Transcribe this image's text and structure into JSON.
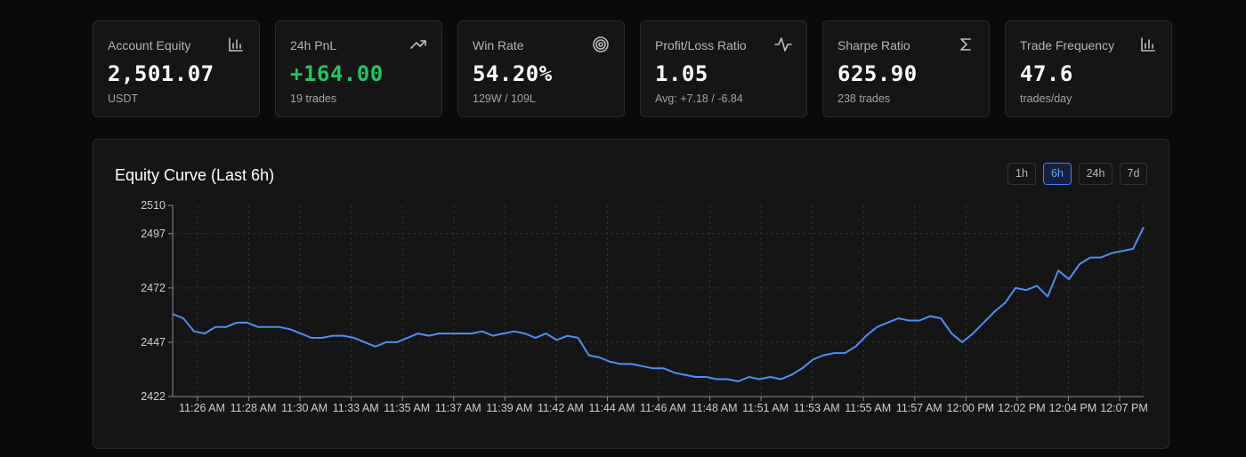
{
  "stats": [
    {
      "label": "Account Equity",
      "value": "2,501.07",
      "sub": "USDT",
      "icon": "bar-chart-icon",
      "positive": false
    },
    {
      "label": "24h PnL",
      "value": "+164.00",
      "sub": "19 trades",
      "icon": "trending-up-icon",
      "positive": true
    },
    {
      "label": "Win Rate",
      "value": "54.20%",
      "sub": "129W / 109L",
      "icon": "target-icon",
      "positive": false
    },
    {
      "label": "Profit/Loss Ratio",
      "value": "1.05",
      "sub": "Avg: +7.18 / -6.84",
      "icon": "activity-icon",
      "positive": false
    },
    {
      "label": "Sharpe Ratio",
      "value": "625.90",
      "sub": "238 trades",
      "icon": "sigma-icon",
      "positive": false
    },
    {
      "label": "Trade Frequency",
      "value": "47.6",
      "sub": "trades/day",
      "icon": "bar-chart-icon",
      "positive": false
    }
  ],
  "colors": {
    "accent": "#3b82f6",
    "positive": "#22c55e",
    "line": "#4f8ef7"
  },
  "chart": {
    "title": "Equity Curve (Last 6h)",
    "ranges": [
      "1h",
      "6h",
      "24h",
      "7d"
    ],
    "active_range": "6h"
  },
  "chart_data": {
    "type": "line",
    "title": "Equity Curve (Last 6h)",
    "xlabel": "",
    "ylabel": "",
    "ylim": [
      2422,
      2510
    ],
    "yticks": [
      2422,
      2447,
      2472,
      2497,
      2510
    ],
    "xtick_labels": [
      "11:26 AM",
      "11:28 AM",
      "11:30 AM",
      "11:33 AM",
      "11:35 AM",
      "11:37 AM",
      "11:39 AM",
      "11:42 AM",
      "11:44 AM",
      "11:46 AM",
      "11:48 AM",
      "11:51 AM",
      "11:53 AM",
      "11:55 AM",
      "11:57 AM",
      "12:00 PM",
      "12:02 PM",
      "12:04 PM",
      "12:07 PM"
    ],
    "grid": true,
    "series": [
      {
        "values": [
          2460,
          2458,
          2452,
          2451,
          2454,
          2454,
          2456,
          2456,
          2454,
          2454,
          2454,
          2453,
          2451,
          2449,
          2449,
          2450,
          2450,
          2449,
          2447,
          2445,
          2447,
          2447,
          2449,
          2451,
          2450,
          2451,
          2451,
          2451,
          2451,
          2452,
          2450,
          2451,
          2452,
          2451,
          2449,
          2451,
          2448,
          2450,
          2449,
          2441,
          2440,
          2438,
          2437,
          2437,
          2436,
          2435,
          2435,
          2433,
          2432,
          2431,
          2431,
          2430,
          2430,
          2429,
          2431,
          2430,
          2431,
          2430,
          2432,
          2435,
          2439,
          2441,
          2442,
          2442,
          2445,
          2450,
          2454,
          2456,
          2458,
          2457,
          2457,
          2459,
          2458,
          2451,
          2447,
          2451,
          2456,
          2461,
          2465,
          2472,
          2471,
          2473,
          2468,
          2480,
          2476,
          2483,
          2486,
          2486,
          2488,
          2489,
          2490,
          2500
        ]
      }
    ]
  }
}
